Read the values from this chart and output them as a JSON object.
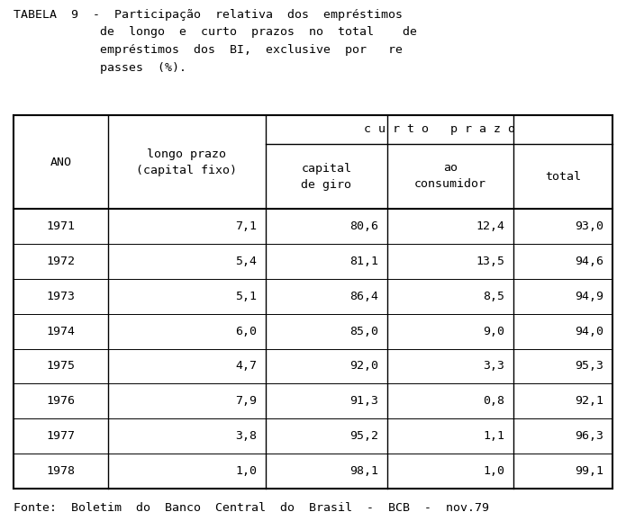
{
  "title_lines": [
    "TABELA  9  -  Participação  relativa  dos  empréstimos",
    "            de  longo  e  curto  prazos  no  total    de",
    "            empréstimos  dos  BI,  exclusive  por   re",
    "            passes  (%)."
  ],
  "footer": "Fonte:  Boletim  do  Banco  Central  do  Brasil  -  BCB  -  nov.79",
  "curto_prazo_label": "c u r t o   p r a z o",
  "rows": [
    [
      "1971",
      "7,1",
      "80,6",
      "12,4",
      "93,0"
    ],
    [
      "1972",
      "5,4",
      "81,1",
      "13,5",
      "94,6"
    ],
    [
      "1973",
      "5,1",
      "86,4",
      "8,5",
      "94,9"
    ],
    [
      "1974",
      "6,0",
      "85,0",
      "9,0",
      "94,0"
    ],
    [
      "1975",
      "4,7",
      "92,0",
      "3,3",
      "95,3"
    ],
    [
      "1976",
      "7,9",
      "91,3",
      "0,8",
      "92,1"
    ],
    [
      "1977",
      "3,8",
      "95,2",
      "1,1",
      "96,3"
    ],
    [
      "1978",
      "1,0",
      "98,1",
      "1,0",
      "99,1"
    ]
  ],
  "bg_color": "#ffffff",
  "text_color": "#000000",
  "font_size": 9.5,
  "title_font_size": 9.5,
  "footer_font_size": 9.5
}
